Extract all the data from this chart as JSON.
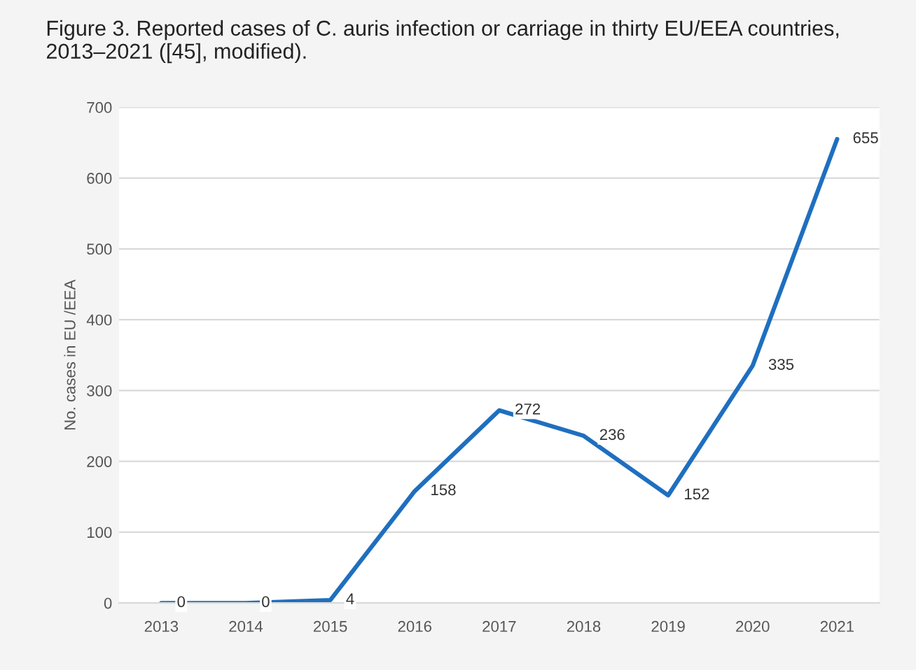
{
  "chart_data": {
    "type": "line",
    "title": "Figure 3. Reported cases of C. auris infection or carriage in thirty EU/EEA countries, 2013–2021 ([45], modified).",
    "ylabel": "No. cases in EU /EEA",
    "categories": [
      "2013",
      "2014",
      "2015",
      "2016",
      "2017",
      "2018",
      "2019",
      "2020",
      "2021"
    ],
    "series": [
      {
        "color": "#1f6fbf",
        "values": [
          0,
          0,
          4,
          158,
          272,
          236,
          152,
          335,
          655
        ]
      }
    ],
    "ylim": [
      0,
      700
    ],
    "yticks": [
      0,
      100,
      200,
      300,
      400,
      500,
      600,
      700
    ],
    "grid": "y",
    "data_labels": true,
    "marker": "none",
    "line_style": "solid"
  }
}
